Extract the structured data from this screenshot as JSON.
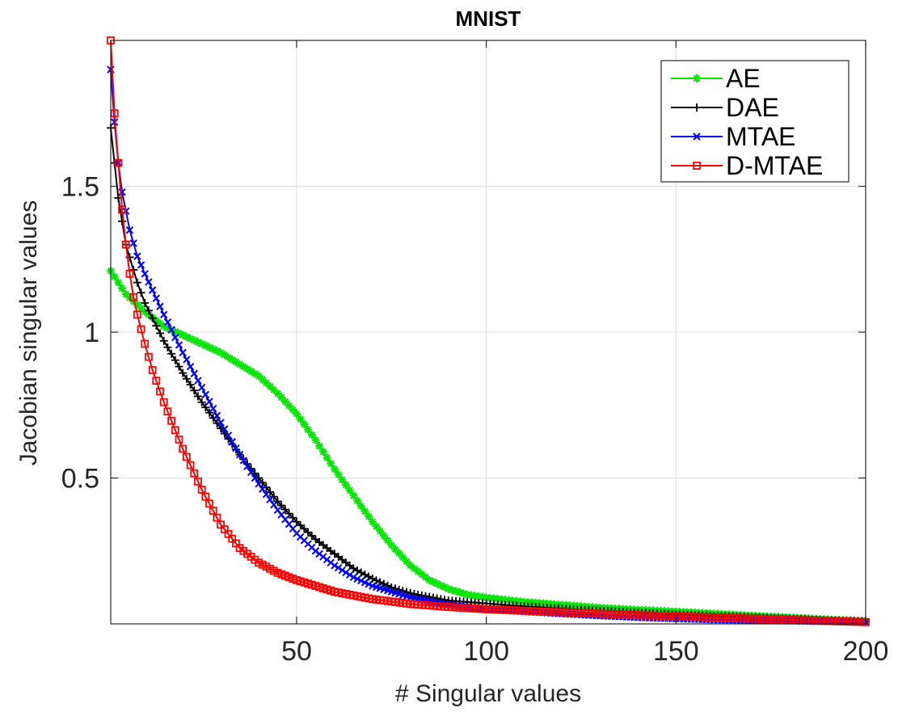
{
  "chart_data": {
    "type": "line",
    "title": "MNIST",
    "xlabel": "# Singular values",
    "ylabel": "Jacobian singular values",
    "xlim": [
      1,
      200
    ],
    "ylim": [
      0,
      2
    ],
    "xticks": [
      50,
      100,
      150,
      200
    ],
    "xtick_labels": [
      "50",
      "100",
      "150",
      "200"
    ],
    "yticks": [
      0.5,
      1,
      1.5
    ],
    "ytick_labels": [
      "0.5",
      "1",
      "1.5"
    ],
    "grid": true,
    "legend_position": "top-right",
    "series": [
      {
        "name": "AE",
        "color": "#00e600",
        "marker": "asterisk",
        "x": [
          1,
          5,
          10,
          15,
          20,
          25,
          30,
          35,
          40,
          45,
          50,
          55,
          60,
          65,
          70,
          75,
          80,
          85,
          90,
          95,
          100,
          110,
          120,
          130,
          140,
          150,
          160,
          170,
          180,
          190,
          200
        ],
        "y": [
          1.21,
          1.13,
          1.07,
          1.02,
          0.99,
          0.96,
          0.93,
          0.89,
          0.85,
          0.79,
          0.72,
          0.63,
          0.53,
          0.44,
          0.35,
          0.27,
          0.2,
          0.15,
          0.12,
          0.1,
          0.09,
          0.075,
          0.065,
          0.055,
          0.048,
          0.042,
          0.035,
          0.028,
          0.022,
          0.015,
          0.01
        ]
      },
      {
        "name": "DAE",
        "color": "#000000",
        "marker": "plus",
        "x": [
          1,
          2,
          3,
          5,
          8,
          10,
          15,
          20,
          25,
          30,
          35,
          40,
          45,
          50,
          55,
          60,
          65,
          70,
          75,
          80,
          90,
          100,
          110,
          120,
          130,
          140,
          150,
          160,
          170,
          180,
          190,
          200
        ],
        "y": [
          1.7,
          1.58,
          1.46,
          1.3,
          1.17,
          1.1,
          0.97,
          0.86,
          0.76,
          0.67,
          0.58,
          0.5,
          0.42,
          0.35,
          0.29,
          0.24,
          0.19,
          0.155,
          0.125,
          0.105,
          0.08,
          0.07,
          0.06,
          0.052,
          0.045,
          0.038,
          0.032,
          0.027,
          0.022,
          0.017,
          0.012,
          0.008
        ]
      },
      {
        "name": "MTAE",
        "color": "#0000ff",
        "marker": "x",
        "x": [
          1,
          2,
          3,
          4,
          6,
          8,
          10,
          15,
          20,
          25,
          30,
          35,
          40,
          45,
          50,
          55,
          60,
          65,
          70,
          80,
          90,
          100,
          110,
          120,
          130,
          140,
          150,
          160,
          170,
          180,
          190,
          200
        ],
        "y": [
          1.9,
          1.72,
          1.58,
          1.48,
          1.35,
          1.26,
          1.2,
          1.06,
          0.93,
          0.81,
          0.69,
          0.58,
          0.48,
          0.39,
          0.31,
          0.25,
          0.2,
          0.16,
          0.13,
          0.09,
          0.065,
          0.05,
          0.042,
          0.035,
          0.028,
          0.022,
          0.018,
          0.014,
          0.012,
          0.01,
          0.008,
          0.005
        ]
      },
      {
        "name": "D-MTAE",
        "color": "#ff0000",
        "marker": "square",
        "x": [
          1,
          2,
          3,
          4,
          5,
          6,
          7,
          8,
          10,
          12,
          15,
          20,
          25,
          30,
          35,
          40,
          45,
          50,
          55,
          60,
          70,
          80,
          90,
          100,
          110,
          120,
          130,
          140,
          150,
          160,
          170,
          180,
          190,
          200
        ],
        "y": [
          2.0,
          1.75,
          1.58,
          1.42,
          1.3,
          1.2,
          1.12,
          1.06,
          0.96,
          0.87,
          0.76,
          0.6,
          0.46,
          0.34,
          0.26,
          0.21,
          0.175,
          0.15,
          0.13,
          0.11,
          0.085,
          0.068,
          0.058,
          0.05,
          0.045,
          0.04,
          0.035,
          0.03,
          0.026,
          0.022,
          0.018,
          0.014,
          0.01,
          0.006
        ]
      }
    ]
  }
}
